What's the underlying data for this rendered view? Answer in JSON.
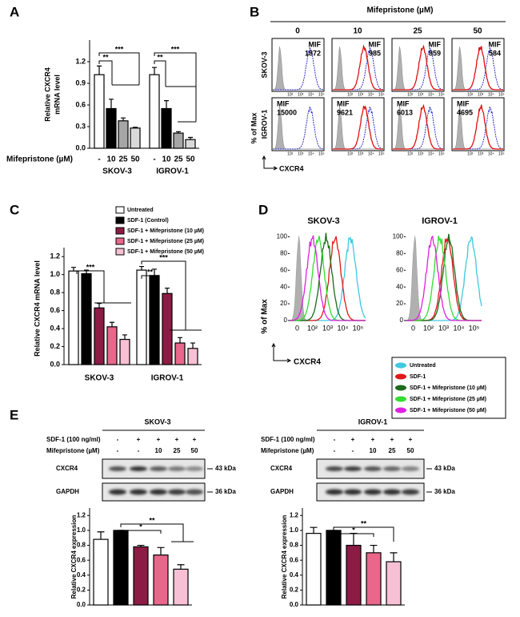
{
  "chart_data": [
    {
      "type": "bar",
      "panel": "A",
      "ylabel": [
        "Relative CXCR4",
        "mRNA level"
      ],
      "xlabel": "Mifepristone (µM)",
      "groups": [
        "SKOV-3",
        "IGROV-1"
      ],
      "series": [
        {
          "name": "-",
          "color": "#ffffff",
          "values": [
            1.02,
            1.02
          ],
          "errors": [
            0.12,
            0.1
          ]
        },
        {
          "name": "10",
          "color": "#000000",
          "values": [
            0.55,
            0.55
          ],
          "errors": [
            0.13,
            0.11
          ]
        },
        {
          "name": "25",
          "color": "#a6a6a6",
          "values": [
            0.38,
            0.21
          ],
          "errors": [
            0.04,
            0.02
          ]
        },
        {
          "name": "50",
          "color": "#d9d9d9",
          "values": [
            0.28,
            0.12
          ],
          "errors": [
            0.01,
            0.03
          ]
        }
      ],
      "ylim": [
        0,
        1.5
      ],
      "yticks": [
        {
          "value": 0,
          "label": "0.0"
        },
        0.3,
        0.6,
        0.9,
        1.2
      ],
      "annotations": [
        "**",
        "***",
        "**",
        "***"
      ]
    },
    {
      "type": "bar",
      "panel": "C",
      "ylabel": [
        "Relative CXCR4 mRNA level"
      ],
      "groups": [
        "SKOV-3",
        "IGROV-1"
      ],
      "series": [
        {
          "name": "Untreated",
          "color": "#ffffff",
          "values": [
            1.04,
            1.05
          ],
          "errors": [
            0.04,
            0.04
          ]
        },
        {
          "name": "SDF-1 (Control)",
          "color": "#000000",
          "values": [
            1.01,
            0.99
          ],
          "errors": [
            0.04,
            0.07
          ]
        },
        {
          "name": "SDF-1 + Mifepristone (10 µM)",
          "color": "#8c1c44",
          "values": [
            0.63,
            0.79
          ],
          "errors": [
            0.05,
            0.06
          ]
        },
        {
          "name": "SDF-1 + Mifepristone (25 µM)",
          "color": "#e8678a",
          "values": [
            0.42,
            0.24
          ],
          "errors": [
            0.05,
            0.06
          ]
        },
        {
          "name": "SDF-1 + Mifepristone (50 µM)",
          "color": "#f8c0d4",
          "values": [
            0.28,
            0.18
          ],
          "errors": [
            0.05,
            0.06
          ]
        }
      ],
      "ylim": [
        0,
        1.3
      ],
      "yticks": [
        {
          "value": 0,
          "label": "0.0"
        },
        0.2,
        0.4,
        0.6,
        0.8,
        {
          "value": 1,
          "label": "1.0"
        },
        1.2
      ],
      "annotations": [
        "***",
        "**",
        "***"
      ]
    },
    {
      "type": "bar",
      "panel": "E",
      "ylabel": [
        "Relative CXCR4 expression"
      ],
      "values": [
        0.88,
        1.0,
        0.78,
        0.67,
        0.48
      ],
      "errors": [
        0.1,
        0,
        0.02,
        0.1,
        0.06
      ],
      "colors": [
        "#ffffff",
        "#000000",
        "#8c1c44",
        "#e8678a",
        "#f8c0d4"
      ],
      "ylim": [
        0,
        1.3
      ],
      "yticks": [
        {
          "value": 0,
          "label": "0.0"
        },
        0.2,
        0.4,
        0.6,
        0.8,
        {
          "value": 1,
          "label": "1.0"
        },
        1.2
      ],
      "annotations": [
        "*",
        "**"
      ],
      "blot": {
        "title": "SKOV-3",
        "rows": [
          {
            "label": "SDF-1 (100 ng/ml)",
            "values": [
              "-",
              "+",
              "+",
              "+",
              "+"
            ]
          },
          {
            "label": "Mifepristone (µM)",
            "values": [
              "-",
              "-",
              10,
              25,
              50
            ]
          }
        ],
        "bands": [
          {
            "name": "CXCR4",
            "size": "43 kDa"
          },
          {
            "name": "GAPDH",
            "size": "36 kDa"
          }
        ]
      }
    },
    {
      "type": "bar",
      "ylabel": [
        "Relative CXCR4 expression"
      ],
      "values": [
        0.96,
        1.0,
        0.8,
        0.7,
        0.58
      ],
      "errors": [
        0.08,
        0,
        0.16,
        0.1,
        0.12
      ],
      "colors": [
        "#ffffff",
        "#000000",
        "#8c1c44",
        "#e8678a",
        "#f8c0d4"
      ],
      "ylim": [
        0,
        1.3
      ],
      "yticks": [
        {
          "value": 0,
          "label": "0.0"
        },
        0.2,
        0.4,
        0.6,
        0.8,
        {
          "value": 1,
          "label": "1.0"
        },
        1.2
      ],
      "annotations": [
        "*",
        "**"
      ],
      "blot": {
        "title": "IGROV-1",
        "rows": [
          {
            "label": "SDF-1 (100 ng/ml)",
            "values": [
              "-",
              "+",
              "+",
              "+",
              "+"
            ]
          },
          {
            "label": "Mifepristone (µM)",
            "values": [
              "-",
              "-",
              10,
              25,
              50
            ]
          }
        ],
        "bands": [
          {
            "name": "CXCR4",
            "size": "43 kDa"
          },
          {
            "name": "GAPDH",
            "size": "36 kDa"
          }
        ]
      }
    }
  ],
  "flow_b": {
    "panel": "B",
    "title": "Mifepristone (µM)",
    "columns": [
      0,
      10,
      25,
      50
    ],
    "rows": [
      {
        "name": "SKOV-3",
        "mfi": [
          1872,
          985,
          859,
          584
        ]
      },
      {
        "name": "IGROV-1",
        "mfi": [
          15000,
          9621,
          6013,
          4695
        ]
      }
    ],
    "mfi_label": "MIF",
    "ylabel": "% of Max",
    "xlabel": "CXCR4",
    "xticks": [
      "10²",
      "10³",
      "10⁴",
      "10⁵"
    ],
    "isotype_color": "#b0b0b0",
    "untreated_color": "#3333cc",
    "treated_color": "#dd1111"
  },
  "flow_d": {
    "panel": "D",
    "titles": [
      "SKOV-3",
      "IGROV-1"
    ],
    "ylim": [
      0,
      110
    ],
    "yticks": [
      0,
      20,
      40,
      60,
      80,
      100
    ],
    "xticks": [
      "0",
      "10²",
      "10³",
      "10⁴",
      "10⁵"
    ],
    "ylabel": "% of Max",
    "xlabel": "CXCR4",
    "isotype_color": "#b0b0b0",
    "legend": [
      {
        "name": "Untreated",
        "color": "#40c8e0"
      },
      {
        "name": "SDF-1",
        "color": "#e01818"
      },
      {
        "name": "SDF-1 + Mifepristone (10 µM)",
        "color": "#1a6b1a"
      },
      {
        "name": "SDF-1 + Mifepristone (25 µM)",
        "color": "#33dd33"
      },
      {
        "name": "SDF-1 + Mifepristone (50 µM)",
        "color": "#e020e0"
      }
    ]
  }
}
